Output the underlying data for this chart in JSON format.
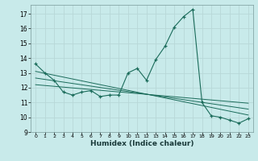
{
  "xlabel": "Humidex (Indice chaleur)",
  "bg_color": "#c8eaea",
  "grid_color": "#b8d8d8",
  "line_color": "#1a6b5a",
  "xlim": [
    -0.5,
    23.5
  ],
  "ylim": [
    9,
    17.6
  ],
  "yticks": [
    9,
    10,
    11,
    12,
    13,
    14,
    15,
    16,
    17
  ],
  "xticks": [
    0,
    1,
    2,
    3,
    4,
    5,
    6,
    7,
    8,
    9,
    10,
    11,
    12,
    13,
    14,
    15,
    16,
    17,
    18,
    19,
    20,
    21,
    22,
    23
  ],
  "main_x": [
    0,
    1,
    2,
    3,
    4,
    5,
    6,
    7,
    8,
    9,
    10,
    11,
    12,
    13,
    14,
    15,
    16,
    17,
    18,
    19,
    20,
    21,
    22,
    23
  ],
  "main_y": [
    13.6,
    13.0,
    12.5,
    11.7,
    11.5,
    11.7,
    11.8,
    11.4,
    11.5,
    11.5,
    13.0,
    13.3,
    12.5,
    13.9,
    14.8,
    16.1,
    16.8,
    17.3,
    11.0,
    10.1,
    10.0,
    9.8,
    9.6,
    9.9
  ],
  "reg_lines": [
    {
      "x": [
        0,
        23
      ],
      "y": [
        13.1,
        10.15
      ]
    },
    {
      "x": [
        0,
        23
      ],
      "y": [
        12.65,
        10.55
      ]
    },
    {
      "x": [
        0,
        23
      ],
      "y": [
        12.2,
        10.95
      ]
    }
  ]
}
